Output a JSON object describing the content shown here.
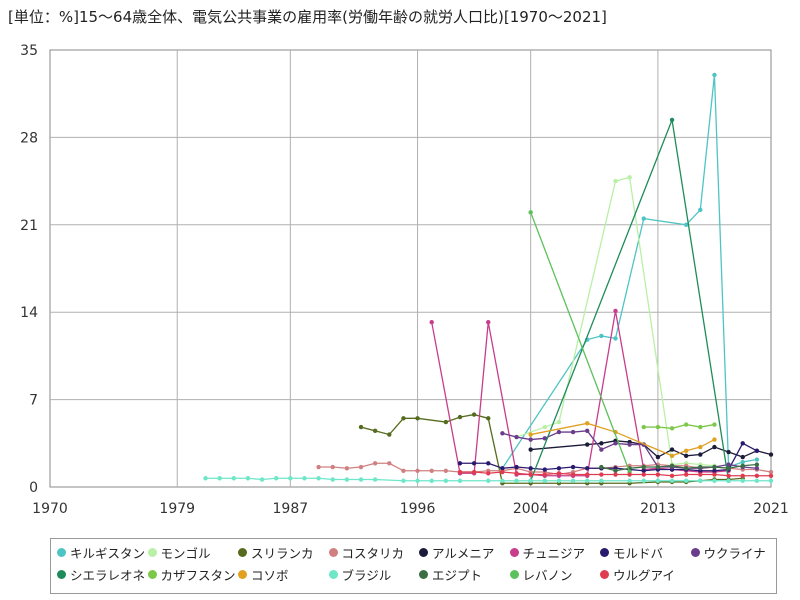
{
  "chart_data": {
    "type": "line",
    "title": "[単位：%]15～64歳全体、電気公共事業の雇用率(労働年齢の就労人口比)[1970～2021]",
    "xlabel": "",
    "ylabel": "",
    "xlim": [
      1970,
      2021
    ],
    "ylim": [
      0,
      35
    ],
    "xticks": [
      1970,
      1979,
      1987,
      1996,
      2004,
      2013,
      2021
    ],
    "yticks": [
      0,
      7,
      14,
      21,
      28,
      35
    ],
    "grid": true,
    "legend_position": "bottom",
    "series": [
      {
        "name": "キルギスタン",
        "color": "#4fc4c4",
        "points": [
          [
            2002,
            1.5
          ],
          [
            2008,
            11.8
          ],
          [
            2009,
            12.1
          ],
          [
            2010,
            11.9
          ],
          [
            2012,
            21.5
          ],
          [
            2015,
            21.0
          ],
          [
            2016,
            22.2
          ],
          [
            2017,
            33.0
          ],
          [
            2018,
            1.6
          ],
          [
            2019,
            2.0
          ],
          [
            2020,
            2.2
          ]
        ]
      },
      {
        "name": "モンゴル",
        "color": "#b8f0a6",
        "points": [
          [
            2003,
            4.0
          ],
          [
            2005,
            4.8
          ],
          [
            2006,
            5.2
          ],
          [
            2010,
            24.5
          ],
          [
            2011,
            24.8
          ],
          [
            2014,
            1.8
          ],
          [
            2015,
            1.9
          ],
          [
            2016,
            1.8
          ],
          [
            2017,
            1.7
          ]
        ]
      },
      {
        "name": "スリランカ",
        "color": "#556b1e",
        "points": [
          [
            1992,
            4.8
          ],
          [
            1993,
            4.5
          ],
          [
            1994,
            4.2
          ],
          [
            1995,
            5.5
          ],
          [
            1996,
            5.5
          ],
          [
            1998,
            5.2
          ],
          [
            1999,
            5.6
          ],
          [
            2000,
            5.8
          ],
          [
            2001,
            5.5
          ],
          [
            2002,
            0.3
          ],
          [
            2004,
            0.3
          ],
          [
            2006,
            0.3
          ],
          [
            2008,
            0.3
          ],
          [
            2009,
            0.3
          ],
          [
            2011,
            0.3
          ],
          [
            2013,
            0.4
          ],
          [
            2014,
            0.4
          ],
          [
            2015,
            0.4
          ],
          [
            2016,
            0.5
          ],
          [
            2017,
            0.6
          ],
          [
            2018,
            0.6
          ],
          [
            2019,
            0.7
          ]
        ]
      },
      {
        "name": "コスタリカ",
        "color": "#d08080",
        "points": [
          [
            1989,
            1.6
          ],
          [
            1990,
            1.6
          ],
          [
            1991,
            1.5
          ],
          [
            1992,
            1.6
          ],
          [
            1993,
            1.9
          ],
          [
            1994,
            1.9
          ],
          [
            1995,
            1.3
          ],
          [
            1996,
            1.3
          ],
          [
            1997,
            1.3
          ],
          [
            1998,
            1.3
          ],
          [
            1999,
            1.2
          ],
          [
            2000,
            1.2
          ],
          [
            2001,
            1.3
          ],
          [
            2002,
            1.3
          ],
          [
            2003,
            1.5
          ],
          [
            2004,
            1.2
          ],
          [
            2005,
            1.2
          ],
          [
            2006,
            1.0
          ],
          [
            2007,
            1.2
          ],
          [
            2008,
            1.5
          ],
          [
            2009,
            1.5
          ],
          [
            2010,
            1.6
          ],
          [
            2011,
            1.7
          ],
          [
            2012,
            1.7
          ],
          [
            2013,
            1.8
          ],
          [
            2014,
            1.7
          ],
          [
            2015,
            1.7
          ],
          [
            2016,
            1.5
          ],
          [
            2017,
            1.6
          ],
          [
            2018,
            1.5
          ],
          [
            2019,
            1.4
          ],
          [
            2020,
            1.4
          ],
          [
            2021,
            1.2
          ]
        ]
      },
      {
        "name": "アルメニア",
        "color": "#1c1c3a",
        "points": [
          [
            2004,
            3.0
          ],
          [
            2008,
            3.4
          ],
          [
            2009,
            3.5
          ],
          [
            2010,
            3.7
          ],
          [
            2011,
            3.6
          ],
          [
            2012,
            3.4
          ],
          [
            2013,
            2.4
          ],
          [
            2014,
            3.0
          ],
          [
            2015,
            2.5
          ],
          [
            2016,
            2.6
          ],
          [
            2017,
            3.2
          ],
          [
            2018,
            2.8
          ],
          [
            2019,
            2.4
          ],
          [
            2020,
            2.9
          ],
          [
            2021,
            2.6
          ]
        ]
      },
      {
        "name": "チュニジア",
        "color": "#c83c8c",
        "points": [
          [
            1997,
            13.2
          ],
          [
            1999,
            1.1
          ],
          [
            2000,
            1.1
          ],
          [
            2001,
            13.2
          ],
          [
            2003,
            1.0
          ],
          [
            2004,
            1.0
          ],
          [
            2005,
            0.9
          ],
          [
            2006,
            0.9
          ],
          [
            2007,
            0.9
          ],
          [
            2008,
            0.9
          ],
          [
            2010,
            14.1
          ],
          [
            2012,
            1.4
          ],
          [
            2013,
            1.5
          ],
          [
            2014,
            1.4
          ],
          [
            2015,
            1.3
          ],
          [
            2016,
            1.2
          ],
          [
            2017,
            1.2
          ],
          [
            2018,
            1.3
          ]
        ]
      },
      {
        "name": "モルドバ",
        "color": "#2a1a6e",
        "points": [
          [
            1999,
            1.9
          ],
          [
            2000,
            1.9
          ],
          [
            2001,
            1.9
          ],
          [
            2002,
            1.5
          ],
          [
            2003,
            1.6
          ],
          [
            2004,
            1.5
          ],
          [
            2005,
            1.4
          ],
          [
            2006,
            1.5
          ],
          [
            2007,
            1.6
          ],
          [
            2008,
            1.5
          ],
          [
            2009,
            1.5
          ],
          [
            2010,
            1.5
          ],
          [
            2011,
            1.4
          ],
          [
            2012,
            1.3
          ],
          [
            2013,
            1.4
          ],
          [
            2014,
            1.4
          ],
          [
            2015,
            1.4
          ],
          [
            2016,
            1.3
          ],
          [
            2017,
            1.3
          ],
          [
            2018,
            1.4
          ],
          [
            2019,
            3.5
          ],
          [
            2020,
            2.9
          ]
        ]
      },
      {
        "name": "ウクライナ",
        "color": "#6a3d8c",
        "points": [
          [
            2002,
            4.3
          ],
          [
            2003,
            4.0
          ],
          [
            2004,
            3.8
          ],
          [
            2005,
            3.9
          ],
          [
            2006,
            4.4
          ],
          [
            2007,
            4.4
          ],
          [
            2008,
            4.5
          ],
          [
            2009,
            3.0
          ],
          [
            2010,
            3.5
          ],
          [
            2011,
            3.4
          ],
          [
            2012,
            3.4
          ],
          [
            2013,
            1.6
          ],
          [
            2014,
            1.6
          ],
          [
            2015,
            1.5
          ],
          [
            2016,
            1.5
          ],
          [
            2017,
            1.6
          ],
          [
            2018,
            1.8
          ],
          [
            2019,
            1.6
          ],
          [
            2020,
            1.5
          ]
        ]
      },
      {
        "name": "シエラレオネ",
        "color": "#1e8c5a",
        "points": [
          [
            2004,
            0.5
          ],
          [
            2014,
            29.4
          ],
          [
            2018,
            0.5
          ]
        ]
      },
      {
        "name": "カザフスタン",
        "color": "#7cc84a",
        "points": [
          [
            2012,
            4.8
          ],
          [
            2013,
            4.8
          ],
          [
            2014,
            4.7
          ],
          [
            2015,
            5.0
          ],
          [
            2016,
            4.8
          ],
          [
            2017,
            5.0
          ]
        ]
      },
      {
        "name": "コソボ",
        "color": "#e0a020",
        "points": [
          [
            2004,
            4.2
          ],
          [
            2008,
            5.1
          ],
          [
            2010,
            4.4
          ],
          [
            2014,
            2.5
          ],
          [
            2015,
            2.9
          ],
          [
            2016,
            3.2
          ],
          [
            2017,
            3.8
          ]
        ]
      },
      {
        "name": "ブラジル",
        "color": "#6ee6c8",
        "points": [
          [
            1981,
            0.7
          ],
          [
            1982,
            0.7
          ],
          [
            1983,
            0.7
          ],
          [
            1984,
            0.7
          ],
          [
            1985,
            0.6
          ],
          [
            1986,
            0.7
          ],
          [
            1987,
            0.7
          ],
          [
            1988,
            0.7
          ],
          [
            1989,
            0.7
          ],
          [
            1990,
            0.6
          ],
          [
            1991,
            0.6
          ],
          [
            1992,
            0.6
          ],
          [
            1993,
            0.6
          ],
          [
            1995,
            0.5
          ],
          [
            1996,
            0.5
          ],
          [
            1997,
            0.5
          ],
          [
            1998,
            0.5
          ],
          [
            1999,
            0.5
          ],
          [
            2001,
            0.5
          ],
          [
            2002,
            0.5
          ],
          [
            2003,
            0.5
          ],
          [
            2004,
            0.5
          ],
          [
            2005,
            0.5
          ],
          [
            2006,
            0.5
          ],
          [
            2007,
            0.5
          ],
          [
            2008,
            0.5
          ],
          [
            2009,
            0.5
          ],
          [
            2011,
            0.5
          ],
          [
            2012,
            0.5
          ],
          [
            2013,
            0.5
          ],
          [
            2014,
            0.5
          ],
          [
            2015,
            0.5
          ],
          [
            2016,
            0.5
          ],
          [
            2017,
            0.5
          ],
          [
            2018,
            0.5
          ],
          [
            2019,
            0.5
          ],
          [
            2020,
            0.5
          ],
          [
            2021,
            0.5
          ]
        ]
      },
      {
        "name": "エジプト",
        "color": "#3c6e46",
        "points": [
          [
            2009,
            1.6
          ],
          [
            2010,
            1.3
          ],
          [
            2011,
            1.5
          ],
          [
            2012,
            1.6
          ],
          [
            2013,
            1.6
          ],
          [
            2014,
            1.7
          ],
          [
            2015,
            1.5
          ],
          [
            2016,
            1.6
          ],
          [
            2017,
            1.6
          ],
          [
            2018,
            1.5
          ],
          [
            2019,
            1.7
          ],
          [
            2020,
            1.8
          ]
        ]
      },
      {
        "name": "レバノン",
        "color": "#5cc05c",
        "points": [
          [
            2004,
            22.0
          ],
          [
            2011,
            1.2
          ]
        ]
      },
      {
        "name": "ウルグアイ",
        "color": "#e03c50",
        "points": [
          [
            1999,
            1.2
          ],
          [
            2000,
            1.2
          ],
          [
            2001,
            1.1
          ],
          [
            2002,
            1.2
          ],
          [
            2003,
            1.1
          ],
          [
            2004,
            1.0
          ],
          [
            2005,
            1.0
          ],
          [
            2006,
            1.1
          ],
          [
            2007,
            1.0
          ],
          [
            2008,
            1.0
          ],
          [
            2009,
            1.0
          ],
          [
            2010,
            1.0
          ],
          [
            2011,
            1.0
          ],
          [
            2012,
            1.0
          ],
          [
            2013,
            1.0
          ],
          [
            2014,
            0.9
          ],
          [
            2015,
            1.0
          ],
          [
            2016,
            1.0
          ],
          [
            2017,
            1.0
          ],
          [
            2018,
            0.9
          ],
          [
            2019,
            0.9
          ],
          [
            2020,
            0.9
          ],
          [
            2021,
            0.9
          ]
        ]
      }
    ]
  }
}
